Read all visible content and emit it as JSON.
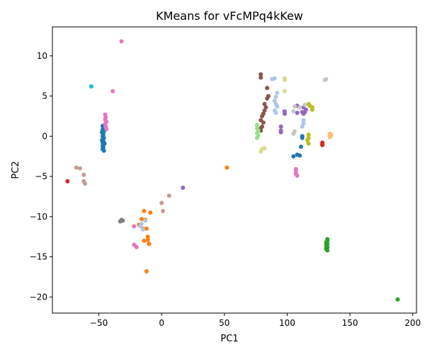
{
  "chart_data": {
    "type": "scatter",
    "title": "KMeans for vFcMPq4kKew",
    "xlabel": "PC1",
    "ylabel": "PC2",
    "xlim": [
      -87,
      203
    ],
    "ylim": [
      -22,
      13.6
    ],
    "xticks": [
      -50,
      0,
      50,
      100,
      150,
      200
    ],
    "yticks": [
      -20,
      -15,
      -10,
      -5,
      0,
      5,
      10
    ],
    "grid": false,
    "legend": "none",
    "series": [
      {
        "color": "#1f77b4",
        "points": [
          [
            -47,
            1.3
          ],
          [
            -46.5,
            1.0
          ],
          [
            -47,
            0.8
          ],
          [
            -46,
            0.6
          ],
          [
            -47,
            0.4
          ],
          [
            -46.5,
            0.2
          ],
          [
            -47,
            0.0
          ],
          [
            -46,
            -0.2
          ],
          [
            -47,
            -0.4
          ],
          [
            -46.5,
            -0.6
          ],
          [
            -47,
            -0.8
          ],
          [
            -46,
            -1.0
          ],
          [
            -47,
            -1.2
          ],
          [
            -46.5,
            -1.4
          ],
          [
            -47,
            -1.6
          ],
          [
            -46,
            -1.8
          ],
          [
            -45.5,
            0.9
          ],
          [
            -45.5,
            -0.9
          ],
          [
            -47.5,
            0.5
          ],
          [
            -47.5,
            -0.5
          ],
          [
            105,
            -2.5
          ],
          [
            108,
            -2.3
          ],
          [
            110,
            -2.4
          ],
          [
            112,
            -0.2
          ],
          [
            112,
            0.0
          ],
          [
            111,
            -1.3
          ]
        ]
      },
      {
        "color": "#ff7f0e",
        "points": [
          [
            52,
            -3.9
          ],
          [
            -14,
            -9.3
          ],
          [
            -9,
            -9.5
          ],
          [
            -16,
            -10.3
          ],
          [
            -13,
            -10.4
          ],
          [
            -18,
            -11.0
          ],
          [
            -15,
            -11.5
          ],
          [
            -12,
            -11.5
          ],
          [
            -11,
            -12.5
          ],
          [
            -14,
            -13.0
          ],
          [
            -11,
            -12.9
          ],
          [
            -10,
            -13.4
          ],
          [
            -12,
            -16.8
          ]
        ]
      },
      {
        "color": "#2ca02c",
        "points": [
          [
            132,
            -12.8
          ],
          [
            132,
            -13.0
          ],
          [
            131,
            -13.2
          ],
          [
            132,
            -13.4
          ],
          [
            131,
            -13.6
          ],
          [
            132,
            -13.8
          ],
          [
            131,
            -14.0
          ],
          [
            132,
            -14.2
          ],
          [
            188,
            -20.3
          ]
        ]
      },
      {
        "color": "#d62728",
        "points": [
          [
            -75,
            -5.6
          ],
          [
            128,
            -0.8
          ],
          [
            128,
            -1.0
          ],
          [
            128,
            -1.1
          ]
        ]
      },
      {
        "color": "#9467bd",
        "points": [
          [
            17,
            -6.4
          ],
          [
            95,
            1.2
          ],
          [
            95,
            0.7
          ],
          [
            95,
            0.5
          ],
          [
            98,
            3.1
          ],
          [
            98,
            2.8
          ],
          [
            108,
            3.8
          ],
          [
            108,
            2.9
          ],
          [
            112,
            3.0
          ],
          [
            113,
            2.8
          ],
          [
            114,
            3.0
          ],
          [
            115,
            3.3
          ],
          [
            113,
            3.6
          ]
        ]
      },
      {
        "color": "#8c564b",
        "points": [
          [
            79,
            7.7
          ],
          [
            79,
            7.3
          ],
          [
            84,
            6.0
          ],
          [
            85,
            5.0
          ],
          [
            84,
            4.7
          ],
          [
            82,
            4.0
          ],
          [
            83,
            3.6
          ],
          [
            82,
            3.2
          ],
          [
            81,
            2.8
          ],
          [
            80,
            2.5
          ],
          [
            79,
            2.0
          ],
          [
            81,
            1.7
          ],
          [
            80,
            1.2
          ],
          [
            79,
            1.0
          ],
          [
            79,
            0.7
          ]
        ]
      },
      {
        "color": "#e377c2",
        "points": [
          [
            -32,
            11.8
          ],
          [
            -39,
            5.6
          ],
          [
            -45,
            2.7
          ],
          [
            -44.5,
            2.4
          ],
          [
            -45,
            2.1
          ],
          [
            -44,
            1.8
          ],
          [
            -45,
            1.5
          ],
          [
            -44.5,
            1.2
          ],
          [
            -44,
            0.9
          ],
          [
            -22,
            -13.5
          ],
          [
            -20,
            -13.8
          ],
          [
            -22,
            -11.2
          ],
          [
            107,
            -4.1
          ],
          [
            107,
            -4.4
          ],
          [
            107,
            -4.7
          ],
          [
            108,
            -4.9
          ]
        ]
      },
      {
        "color": "#7f7f7f",
        "points": [
          [
            -32,
            -10.4
          ],
          [
            -31,
            -10.5
          ],
          [
            -33,
            -10.6
          ],
          [
            -32,
            -10.5
          ]
        ]
      },
      {
        "color": "#bcbd22",
        "points": [
          [
            117,
            4.0
          ],
          [
            118,
            3.8
          ],
          [
            120,
            3.6
          ],
          [
            120,
            3.3
          ],
          [
            117,
            0.2
          ],
          [
            117,
            -0.2
          ],
          [
            116,
            -0.5
          ],
          [
            117,
            -0.9
          ]
        ]
      },
      {
        "color": "#17becf",
        "points": [
          [
            -56,
            6.2
          ]
        ]
      },
      {
        "color": "#aec7e8",
        "points": [
          [
            88,
            7.1
          ],
          [
            90,
            7.2
          ],
          [
            92,
            5.4
          ],
          [
            91,
            4.9
          ],
          [
            90,
            4.4
          ],
          [
            91,
            4.0
          ],
          [
            92,
            3.7
          ],
          [
            90,
            3.2
          ],
          [
            91,
            2.9
          ],
          [
            113,
            2.0
          ],
          [
            113,
            1.6
          ],
          [
            112,
            1.2
          ],
          [
            -16,
            -10.9
          ],
          [
            -13,
            -10.5
          ],
          [
            -17,
            -11.2
          ],
          [
            -15,
            -11.6
          ]
        ]
      },
      {
        "color": "#ffbb78",
        "points": [
          [
            134,
            0.3
          ],
          [
            135,
            0.1
          ],
          [
            134,
            -0.1
          ],
          [
            135,
            0.2
          ],
          [
            134,
            0.0
          ]
        ]
      },
      {
        "color": "#98df8a",
        "points": [
          [
            76,
            1.4
          ],
          [
            76,
            1.0
          ],
          [
            77,
            0.7
          ],
          [
            76,
            0.4
          ],
          [
            77,
            0.1
          ],
          [
            76,
            -0.2
          ]
        ]
      },
      {
        "color": "#dbdb8d",
        "points": [
          [
            98,
            7.2
          ],
          [
            98,
            7.0
          ],
          [
            98,
            5.6
          ],
          [
            80,
            -1.6
          ],
          [
            79,
            -1.9
          ],
          [
            82,
            -1.5
          ]
        ]
      },
      {
        "color": "#c49c94",
        "points": [
          [
            -68,
            -3.9
          ],
          [
            -65,
            -4.0
          ],
          [
            -62,
            -4.8
          ],
          [
            -62,
            -5.6
          ],
          [
            -61,
            -5.9
          ],
          [
            6,
            -7.4
          ],
          [
            0,
            -8.3
          ],
          [
            1,
            -9.3
          ]
        ]
      },
      {
        "color": "#c7c7c7",
        "points": [
          [
            106,
            3.7
          ],
          [
            105,
            3.1
          ],
          [
            110,
            3.6
          ],
          [
            106,
            0.6
          ],
          [
            105,
            0.3
          ],
          [
            130,
            7.0
          ],
          [
            131,
            7.1
          ],
          [
            114,
            3.9
          ]
        ]
      }
    ]
  }
}
